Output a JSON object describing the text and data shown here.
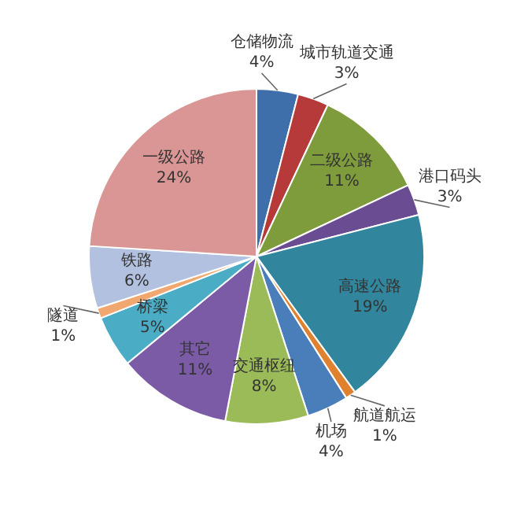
{
  "chart_data": {
    "type": "pie",
    "categories": [
      "仓储物流",
      "城市轨道交通",
      "二级公路",
      "港口码头",
      "高速公路",
      "航道航运",
      "机场",
      "交通枢纽",
      "其它",
      "桥梁",
      "隧道",
      "铁路",
      "一级公路"
    ],
    "values": [
      4,
      3,
      11,
      3,
      19,
      1,
      4,
      8,
      11,
      5,
      1,
      6,
      24
    ],
    "value_labels": [
      "4%",
      "3%",
      "11%",
      "3%",
      "19%",
      "1%",
      "4%",
      "8%",
      "11%",
      "5%",
      "1%",
      "6%",
      "24%"
    ],
    "colors": [
      "#3f6faa",
      "#b73a3a",
      "#7f9c3c",
      "#6a4c93",
      "#31859c",
      "#e0812f",
      "#4a7ebb",
      "#9bbb59",
      "#7b5aa6",
      "#4bacc6",
      "#f0a870",
      "#b3c1e0",
      "#d99694"
    ],
    "legend": false
  }
}
